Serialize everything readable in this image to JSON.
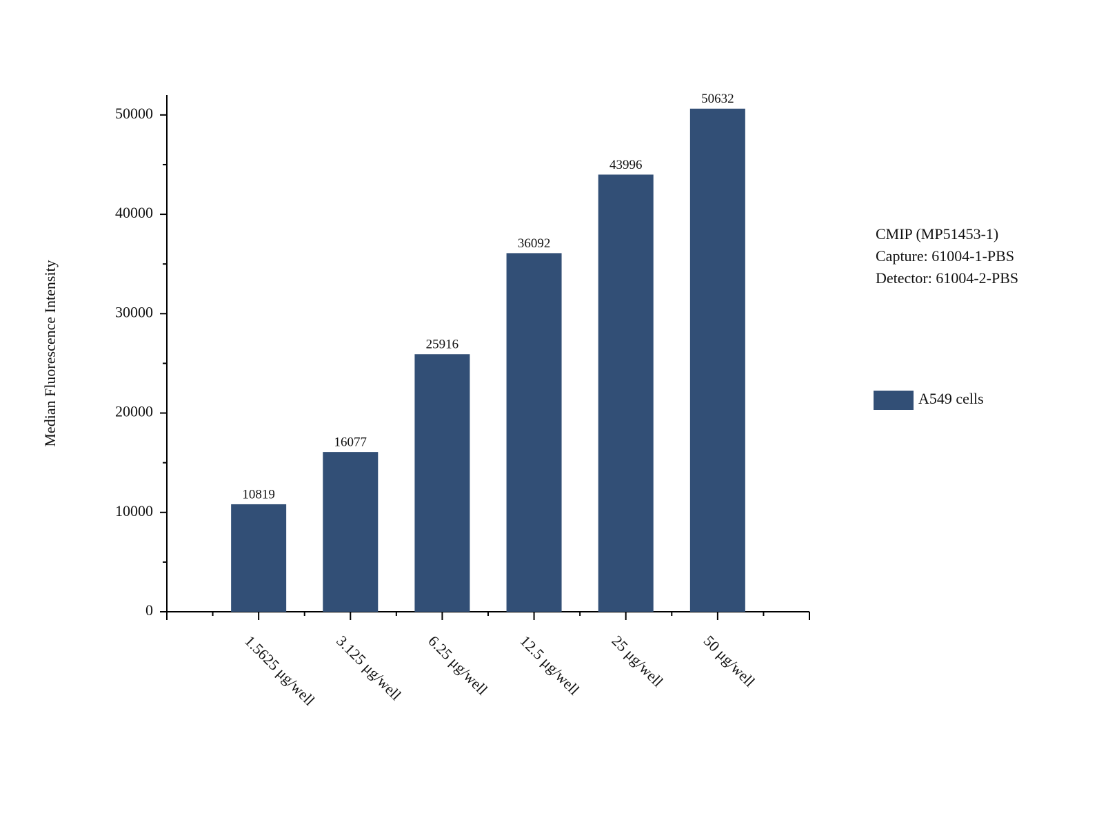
{
  "chart_data": {
    "type": "bar",
    "y_label": "Median Fluorescence Intensity",
    "categories": [
      "1.5625 μg/well",
      "3.125 μg/well",
      "6.25 μg/well",
      "12.5 μg/well",
      "25 μg/well",
      "50 μg/well"
    ],
    "series": [
      {
        "name": "A549 cells",
        "color": "#324f76",
        "values": [
          10819,
          16077,
          25916,
          36092,
          43996,
          50632
        ]
      }
    ],
    "ylim": [
      0,
      52000
    ],
    "yticks": [
      0,
      10000,
      20000,
      30000,
      40000,
      50000
    ],
    "annotations": [
      "CMIP (MP51453-1)",
      "Capture: 61004-1-PBS",
      "Detector: 61004-2-PBS"
    ],
    "data_labels": true
  }
}
